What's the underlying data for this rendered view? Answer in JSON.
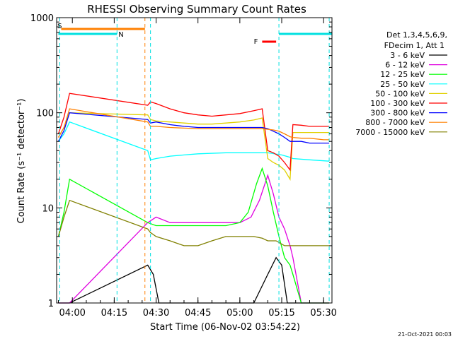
{
  "chart_data": {
    "type": "line",
    "title": "RHESSI Observing Summary Count Rates",
    "xlabel": "Start Time (06-Nov-02 03:54:22)",
    "ylabel": "Count Rate (s⁻¹ detector⁻¹)",
    "y_scale": "log",
    "ylim": [
      1,
      1000
    ],
    "xlim": [
      "03:54:22",
      "05:33:00"
    ],
    "x_ticks": [
      "04:00",
      "04:15",
      "04:30",
      "04:45",
      "05:00",
      "05:15",
      "05:30"
    ],
    "y_ticks": [
      "1",
      "10",
      "100",
      "1000"
    ],
    "timestamp": "21-Oct-2021 00:03",
    "legend": {
      "header_1": "Det 1,3,4,5,6,9,",
      "header_2": "FDecim 1, Att 1",
      "placement": "top-right outside plot"
    },
    "flags": [
      {
        "label": "S",
        "color": "#00e0e0"
      },
      {
        "label": "N",
        "color": "#00e0e0"
      },
      {
        "label": "F",
        "color": "#ff0000"
      }
    ],
    "series": [
      {
        "name": "3 - 6 keV",
        "color": "#000000",
        "x": [
          "03:55",
          "03:57",
          "03:59",
          "04:27",
          "04:29",
          "04:31",
          "04:35",
          "04:40",
          "04:45",
          "04:50",
          "04:55",
          "05:00",
          "05:05",
          "05:10",
          "05:13",
          "05:15",
          "05:17",
          "05:19",
          "05:21",
          "05:25",
          "05:30",
          "05:32"
        ],
        "y": [
          1.0,
          1.0,
          1.0,
          2.5,
          2.0,
          1.0,
          1.0,
          1.0,
          1.0,
          1.0,
          1.0,
          1.0,
          1.0,
          2.0,
          3.0,
          2.5,
          1.0,
          1.0,
          1.0,
          1.0,
          1.0,
          1.0
        ]
      },
      {
        "name": "6 - 12 keV",
        "color": "#e000e0",
        "x": [
          "03:55",
          "03:57",
          "03:59",
          "04:27",
          "04:30",
          "04:35",
          "04:45",
          "04:55",
          "05:00",
          "05:04",
          "05:07",
          "05:10",
          "05:12",
          "05:14",
          "05:16",
          "05:18",
          "05:19",
          "05:22",
          "05:30",
          "05:32"
        ],
        "y": [
          1.0,
          1.0,
          1.0,
          7,
          8,
          7,
          7,
          7,
          7,
          8,
          12,
          22,
          14,
          8,
          6,
          4,
          3,
          1.0,
          1.0,
          1.0
        ]
      },
      {
        "name": "12 - 25 keV",
        "color": "#00ff00",
        "x": [
          "03:55",
          "03:57",
          "03:59",
          "04:27",
          "04:30",
          "04:35",
          "04:45",
          "04:55",
          "05:00",
          "05:03",
          "05:06",
          "05:08",
          "05:10",
          "05:12",
          "05:14",
          "05:16",
          "05:18",
          "05:19",
          "05:22",
          "05:30",
          "05:32"
        ],
        "y": [
          5,
          9,
          20,
          7,
          6.5,
          6.5,
          6.5,
          6.5,
          7,
          9,
          18,
          26,
          17,
          9,
          5,
          3,
          2.5,
          2,
          1.0,
          1.0,
          1.0
        ]
      },
      {
        "name": "25 - 50 keV",
        "color": "#00ffff",
        "x": [
          "03:55",
          "03:57",
          "03:59",
          "04:27",
          "04:28",
          "04:30",
          "04:35",
          "04:40",
          "04:45",
          "04:55",
          "05:00",
          "05:05",
          "05:10",
          "05:15",
          "05:18",
          "05:19",
          "05:25",
          "05:32"
        ],
        "y": [
          50,
          60,
          80,
          40,
          32,
          33,
          35,
          36,
          37,
          38,
          38,
          38,
          38,
          36,
          34,
          33,
          32,
          31
        ]
      },
      {
        "name": "50 - 100 keV",
        "color": "#e0d000",
        "x": [
          "03:55",
          "03:57",
          "03:59",
          "04:27",
          "04:28",
          "04:30",
          "04:35",
          "04:40",
          "04:45",
          "04:50",
          "04:55",
          "05:00",
          "05:05",
          "05:08",
          "05:10",
          "05:12",
          "05:14",
          "05:16",
          "05:18",
          "05:19",
          "05:22",
          "05:25",
          "05:30",
          "05:32"
        ],
        "y": [
          55,
          70,
          100,
          95,
          85,
          82,
          80,
          78,
          76,
          76,
          78,
          80,
          84,
          88,
          33,
          30,
          28,
          25,
          20,
          62,
          62,
          62,
          62,
          62
        ]
      },
      {
        "name": "100 - 300 keV",
        "color": "#ff0000",
        "x": [
          "03:55",
          "03:57",
          "03:59",
          "04:27",
          "04:28",
          "04:30",
          "04:35",
          "04:40",
          "04:45",
          "04:50",
          "04:55",
          "05:00",
          "05:05",
          "05:08",
          "05:10",
          "05:12",
          "05:14",
          "05:16",
          "05:18",
          "05:19",
          "05:22",
          "05:25",
          "05:30",
          "05:32"
        ],
        "y": [
          60,
          90,
          160,
          120,
          130,
          125,
          110,
          100,
          95,
          92,
          95,
          98,
          105,
          110,
          40,
          38,
          35,
          30,
          25,
          75,
          74,
          72,
          72,
          72
        ]
      },
      {
        "name": "300 - 800 keV",
        "color": "#0000ff",
        "x": [
          "03:55",
          "03:57",
          "03:59",
          "04:27",
          "04:28",
          "04:30",
          "04:35",
          "04:40",
          "04:45",
          "04:50",
          "04:55",
          "05:00",
          "05:05",
          "05:08",
          "05:10",
          "05:12",
          "05:14",
          "05:16",
          "05:18",
          "05:19",
          "05:22",
          "05:25",
          "05:30",
          "05:32"
        ],
        "y": [
          50,
          65,
          100,
          85,
          78,
          80,
          75,
          72,
          70,
          70,
          70,
          70,
          70,
          70,
          68,
          64,
          60,
          55,
          50,
          50,
          50,
          48,
          48,
          48
        ]
      },
      {
        "name": "800 - 7000 keV",
        "color": "#ff8000",
        "x": [
          "03:55",
          "03:57",
          "03:59",
          "04:27",
          "04:28",
          "04:30",
          "04:35",
          "04:40",
          "04:45",
          "04:50",
          "04:55",
          "05:00",
          "05:05",
          "05:08",
          "05:10",
          "05:12",
          "05:14",
          "05:16",
          "05:18",
          "05:19",
          "05:22",
          "05:25",
          "05:30",
          "05:32"
        ],
        "y": [
          55,
          70,
          110,
          80,
          72,
          72,
          70,
          69,
          68,
          68,
          68,
          68,
          68,
          68,
          67,
          66,
          64,
          60,
          56,
          55,
          54,
          54,
          52,
          52
        ]
      },
      {
        "name": "7000 - 15000 keV",
        "color": "#808000",
        "x": [
          "03:55",
          "03:57",
          "03:59",
          "04:27",
          "04:28",
          "04:30",
          "04:35",
          "04:40",
          "04:45",
          "04:50",
          "04:55",
          "05:00",
          "05:05",
          "05:08",
          "05:10",
          "05:13",
          "05:16",
          "05:19",
          "05:22",
          "05:25",
          "05:30",
          "05:32"
        ],
        "y": [
          5,
          8,
          12,
          6,
          5.5,
          5,
          4.5,
          4,
          4,
          4.5,
          5,
          5,
          5,
          4.8,
          4.5,
          4.5,
          4,
          4,
          4,
          4,
          4,
          4
        ]
      }
    ]
  }
}
